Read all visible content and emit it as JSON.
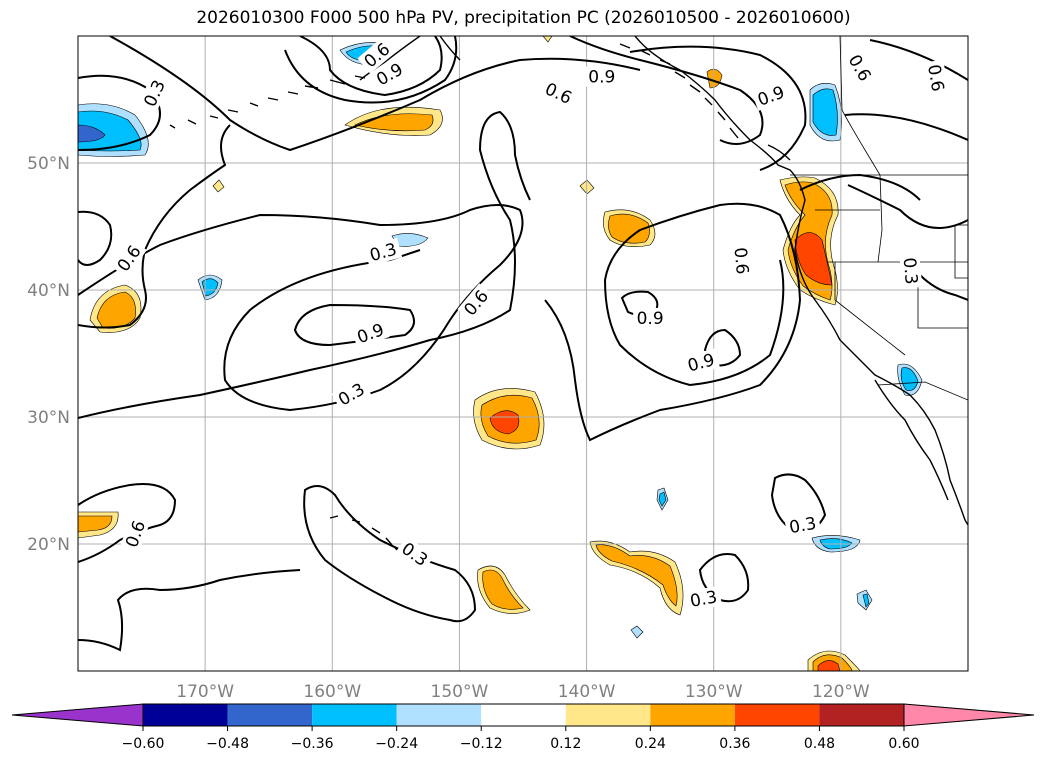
{
  "title": "2026010300 F000 500 hPa PV, precipitation PC (2026010500 - 2026010600)",
  "map": {
    "extent": {
      "lon": [
        -180,
        -110
      ],
      "lat": [
        10,
        60
      ]
    },
    "gridline_color": "#b0b0b0",
    "coast_color": "#000000",
    "lon_ticks": [
      {
        "lon": -170,
        "label": "170°W"
      },
      {
        "lon": -160,
        "label": "160°W"
      },
      {
        "lon": -150,
        "label": "150°W"
      },
      {
        "lon": -140,
        "label": "140°W"
      },
      {
        "lon": -130,
        "label": "130°W"
      },
      {
        "lon": -120,
        "label": "120°W"
      }
    ],
    "lat_ticks": [
      {
        "lat": 20,
        "label": "20°N"
      },
      {
        "lat": 30,
        "label": "30°N"
      },
      {
        "lat": 40,
        "label": "40°N"
      },
      {
        "lat": 50,
        "label": "50°N"
      }
    ],
    "contour_labels": [
      {
        "text": "0.3",
        "lon": -174,
        "lat": 55.5,
        "rot": -65
      },
      {
        "text": "0.6",
        "lon": -156.5,
        "lat": 58.5,
        "rot": -40
      },
      {
        "text": "0.9",
        "lon": -155.5,
        "lat": 57,
        "rot": -30
      },
      {
        "text": "0.9",
        "lon": -138.8,
        "lat": 56.8,
        "rot": 0
      },
      {
        "text": "0.6",
        "lon": -142.2,
        "lat": 55.5,
        "rot": 25
      },
      {
        "text": "0.9",
        "lon": -125.5,
        "lat": 55.3,
        "rot": -20
      },
      {
        "text": "0.6",
        "lon": -118.5,
        "lat": 57.5,
        "rot": 60
      },
      {
        "text": "0.6",
        "lon": -112.5,
        "lat": 56.7,
        "rot": 80
      },
      {
        "text": "0.3",
        "lon": -156,
        "lat": 43,
        "rot": -15
      },
      {
        "text": "0.6",
        "lon": -176,
        "lat": 42.5,
        "rot": -55
      },
      {
        "text": "0.6",
        "lon": -127.8,
        "lat": 42.3,
        "rot": 85
      },
      {
        "text": "0.3",
        "lon": -114.5,
        "lat": 41.5,
        "rot": 85
      },
      {
        "text": "0.6",
        "lon": -148.7,
        "lat": 39,
        "rot": -50
      },
      {
        "text": "0.9",
        "lon": -157,
        "lat": 36.6,
        "rot": -20
      },
      {
        "text": "0.9",
        "lon": -135,
        "lat": 37.8,
        "rot": 0
      },
      {
        "text": "0.9",
        "lon": -131,
        "lat": 34.3,
        "rot": -15
      },
      {
        "text": "0.3",
        "lon": -158.5,
        "lat": 31.8,
        "rot": -30
      },
      {
        "text": "0.6",
        "lon": -175.5,
        "lat": 20.8,
        "rot": -70
      },
      {
        "text": "0.3",
        "lon": -123,
        "lat": 21.5,
        "rot": -10
      },
      {
        "text": "0.3",
        "lon": -153.5,
        "lat": 19.2,
        "rot": 35
      },
      {
        "text": "0.3",
        "lon": -130.8,
        "lat": 15.7,
        "rot": -10
      }
    ]
  },
  "colorbar": {
    "ticks": [
      "−0.60",
      "−0.48",
      "−0.36",
      "−0.24",
      "−0.12",
      "0.12",
      "0.24",
      "0.36",
      "0.48",
      "0.60"
    ],
    "colors": [
      "#9933cc",
      "#000099",
      "#3366cc",
      "#00bfff",
      "#b0e0ff",
      "#ffffff",
      "#ffe78a",
      "#ffa500",
      "#ff4500",
      "#b22222",
      "#ff88aa",
      "#ff88aa"
    ]
  }
}
